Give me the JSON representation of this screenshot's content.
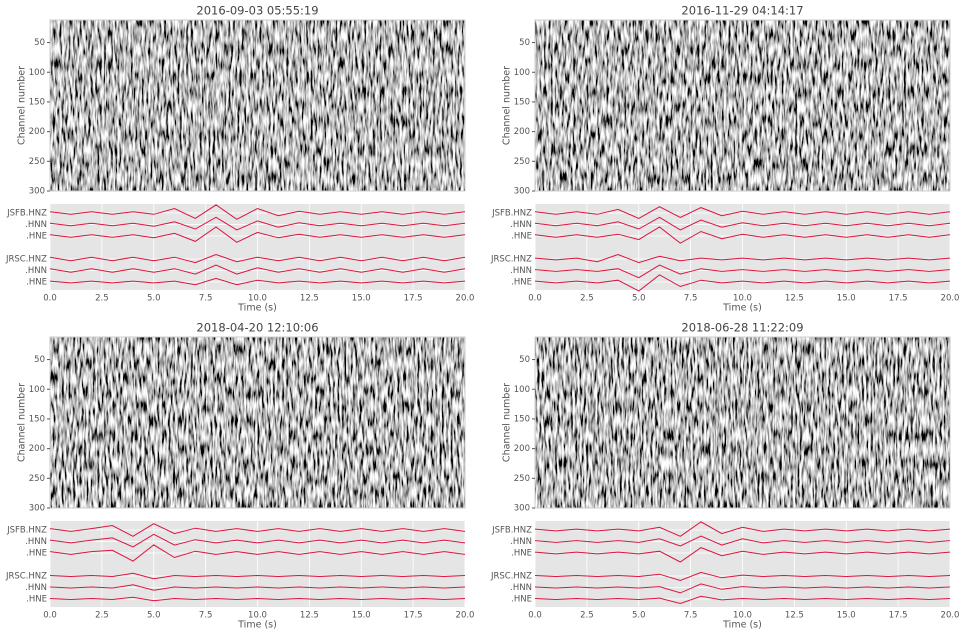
{
  "chart_data": [
    {
      "type": "seismic",
      "title": "2016-09-03 05:55:19",
      "image": {
        "ylabel": "Channel number",
        "ylim": [
          12,
          300
        ],
        "yticks": [
          50,
          100,
          150,
          200,
          250,
          300
        ]
      },
      "traces": {
        "xlabel": "Time (s)",
        "xlim": [
          0,
          20
        ],
        "xticks": [
          {
            "value": 0,
            "label": "0.0"
          },
          2.5,
          {
            "value": 5,
            "label": "5.0"
          },
          7.5,
          {
            "value": 10,
            "label": "10.0"
          },
          12.5,
          {
            "value": 15,
            "label": "15.0"
          },
          17.5,
          {
            "value": 20,
            "label": "20.0"
          }
        ],
        "x": [
          0,
          1,
          2,
          3,
          4,
          5,
          6,
          7,
          8,
          9,
          10,
          11,
          12,
          13,
          14,
          15,
          16,
          17,
          18,
          19,
          20
        ],
        "series": [
          {
            "name": "JSFB.HNZ",
            "color": "#dc143c",
            "values": [
              0.15,
              -0.15,
              0.15,
              -0.15,
              0.15,
              -0.15,
              0.5,
              -0.6,
              0.9,
              -0.7,
              0.5,
              -0.3,
              0.2,
              -0.15,
              0.15,
              -0.15,
              0.15,
              -0.15,
              0.15,
              -0.15,
              0.15
            ]
          },
          {
            "name": ".HNN",
            "color": "#dc143c",
            "values": [
              0.15,
              -0.15,
              0.15,
              -0.15,
              0.15,
              -0.2,
              0.3,
              -0.5,
              0.8,
              -0.6,
              0.4,
              -0.3,
              0.2,
              -0.15,
              0.15,
              -0.15,
              0.15,
              -0.15,
              0.15,
              -0.15,
              0.15
            ]
          },
          {
            "name": ".HNE",
            "color": "#dc143c",
            "values": [
              0.15,
              -0.15,
              0.15,
              -0.15,
              0.15,
              -0.2,
              0.3,
              -0.6,
              1.0,
              -0.7,
              0.4,
              -0.2,
              0.2,
              -0.15,
              0.15,
              -0.15,
              0.15,
              -0.15,
              0.15,
              -0.15,
              0.15
            ]
          },
          {
            "name": "JRSC.HNZ",
            "color": "#dc143c",
            "values": [
              0.2,
              -0.2,
              0.2,
              -0.2,
              0.2,
              -0.2,
              0.2,
              -0.4,
              0.5,
              -0.3,
              0.2,
              -0.2,
              0.2,
              -0.2,
              0.2,
              -0.2,
              0.2,
              -0.2,
              0.2,
              -0.2,
              0.2
            ]
          },
          {
            "name": ".HNN",
            "color": "#dc143c",
            "values": [
              0.2,
              -0.2,
              0.2,
              -0.2,
              0.2,
              -0.2,
              0.2,
              -0.4,
              0.6,
              -0.4,
              0.3,
              -0.2,
              0.2,
              -0.2,
              0.2,
              -0.2,
              0.2,
              -0.2,
              0.2,
              -0.2,
              0.2
            ]
          },
          {
            "name": ".HNE",
            "color": "#dc143c",
            "values": [
              0.1,
              -0.1,
              0.1,
              -0.1,
              0.1,
              -0.1,
              0.1,
              -0.3,
              0.4,
              -0.3,
              0.2,
              -0.1,
              0.1,
              -0.1,
              0.1,
              -0.1,
              0.1,
              -0.1,
              0.1,
              -0.1,
              0.1
            ]
          }
        ]
      }
    },
    {
      "type": "seismic",
      "title": "2016-11-29 04:14:17",
      "image": {
        "ylabel": "Channel number",
        "ylim": [
          12,
          300
        ],
        "yticks": [
          50,
          100,
          150,
          200,
          250,
          300
        ]
      },
      "traces": {
        "xlabel": "Time (s)",
        "xlim": [
          0,
          20
        ],
        "xticks": [
          {
            "value": 0,
            "label": "0.0"
          },
          2.5,
          {
            "value": 5,
            "label": "5.0"
          },
          7.5,
          {
            "value": 10,
            "label": "10.0"
          },
          12.5,
          {
            "value": 15,
            "label": "15.0"
          },
          17.5,
          {
            "value": 20,
            "label": "20.0"
          }
        ],
        "x": [
          0,
          1,
          2,
          3,
          4,
          5,
          6,
          7,
          8,
          9,
          10,
          11,
          12,
          13,
          14,
          15,
          16,
          17,
          18,
          19,
          20
        ],
        "series": [
          {
            "name": "JSFB.HNZ",
            "color": "#dc143c",
            "values": [
              0.15,
              -0.15,
              0.15,
              -0.15,
              0.4,
              -0.6,
              0.7,
              -0.5,
              0.6,
              -0.3,
              0.2,
              -0.15,
              0.15,
              -0.15,
              0.15,
              -0.15,
              0.15,
              -0.15,
              0.15,
              -0.15,
              0.15
            ]
          },
          {
            "name": ".HNN",
            "color": "#dc143c",
            "values": [
              0.15,
              -0.15,
              0.15,
              -0.15,
              0.3,
              -0.5,
              0.8,
              -0.6,
              0.5,
              -0.3,
              0.2,
              -0.15,
              0.15,
              -0.15,
              0.15,
              -0.15,
              0.15,
              -0.15,
              0.15,
              -0.15,
              0.15
            ]
          },
          {
            "name": ".HNE",
            "color": "#dc143c",
            "values": [
              0.15,
              -0.15,
              0.15,
              -0.15,
              0.2,
              -0.4,
              1.0,
              -0.8,
              0.5,
              -0.3,
              0.2,
              -0.15,
              0.15,
              -0.15,
              0.15,
              -0.15,
              0.15,
              -0.15,
              0.15,
              -0.15,
              0.15
            ]
          },
          {
            "name": "JRSC.HNZ",
            "color": "#dc143c",
            "values": [
              0.1,
              -0.1,
              0.1,
              -0.3,
              0.5,
              -0.4,
              0.3,
              -0.2,
              0.1,
              -0.1,
              0.1,
              -0.1,
              0.1,
              -0.1,
              0.1,
              -0.1,
              0.1,
              -0.1,
              0.1,
              -0.1,
              0.1
            ]
          },
          {
            "name": ".HNN",
            "color": "#dc143c",
            "values": [
              0.1,
              -0.1,
              0.1,
              -0.1,
              0.2,
              -0.8,
              0.6,
              -0.4,
              0.2,
              -0.1,
              0.1,
              -0.1,
              0.1,
              -0.1,
              0.1,
              -0.1,
              0.1,
              -0.1,
              0.1,
              -0.1,
              0.1
            ]
          },
          {
            "name": ".HNE",
            "color": "#dc143c",
            "values": [
              0.1,
              -0.1,
              0.1,
              -0.1,
              0.2,
              -1.0,
              0.8,
              -0.5,
              0.2,
              -0.1,
              0.1,
              -0.1,
              0.1,
              -0.1,
              0.1,
              -0.1,
              0.1,
              -0.1,
              0.1,
              -0.1,
              0.1
            ]
          }
        ]
      }
    },
    {
      "type": "seismic",
      "title": "2018-04-20 12:10:06",
      "image": {
        "ylabel": "Channel number",
        "ylim": [
          12,
          300
        ],
        "yticks": [
          50,
          100,
          150,
          200,
          250,
          300
        ]
      },
      "traces": {
        "xlabel": "Time (s)",
        "xlim": [
          0,
          20
        ],
        "xticks": [
          {
            "value": 0,
            "label": "0.0"
          },
          2.5,
          {
            "value": 5,
            "label": "5.0"
          },
          7.5,
          {
            "value": 10,
            "label": "10.0"
          },
          12.5,
          {
            "value": 15,
            "label": "15.0"
          },
          17.5,
          {
            "value": 20,
            "label": "20.0"
          }
        ],
        "x": [
          0,
          1,
          2,
          3,
          4,
          5,
          6,
          7,
          8,
          9,
          10,
          11,
          12,
          13,
          14,
          15,
          16,
          17,
          18,
          19,
          20
        ],
        "series": [
          {
            "name": "JSFB.HNZ",
            "color": "#dc143c",
            "values": [
              0.15,
              -0.15,
              0.15,
              0.5,
              -0.7,
              0.7,
              -0.4,
              0.2,
              -0.15,
              0.15,
              -0.15,
              0.15,
              -0.15,
              0.15,
              -0.15,
              0.15,
              -0.15,
              0.15,
              -0.15,
              0.15,
              -0.15
            ]
          },
          {
            "name": ".HNN",
            "color": "#dc143c",
            "values": [
              0.15,
              -0.15,
              0.15,
              0.4,
              -0.6,
              0.8,
              -0.4,
              0.2,
              -0.15,
              0.15,
              -0.15,
              0.15,
              -0.15,
              0.15,
              -0.15,
              0.15,
              -0.15,
              0.15,
              -0.15,
              0.15,
              -0.15
            ]
          },
          {
            "name": ".HNE",
            "color": "#dc143c",
            "values": [
              0.15,
              -0.15,
              0.15,
              0.3,
              -0.9,
              0.9,
              -0.5,
              0.2,
              -0.15,
              0.15,
              -0.15,
              0.15,
              -0.15,
              0.15,
              -0.15,
              0.15,
              -0.15,
              0.15,
              -0.15,
              0.15,
              -0.15
            ]
          },
          {
            "name": "JRSC.HNZ",
            "color": "#dc143c",
            "values": [
              0.05,
              -0.05,
              0.05,
              -0.05,
              0.3,
              -0.3,
              0.05,
              -0.05,
              0.05,
              -0.05,
              0.05,
              -0.05,
              0.05,
              -0.05,
              0.05,
              -0.05,
              0.05,
              -0.05,
              0.05,
              -0.05,
              0.05
            ]
          },
          {
            "name": ".HNN",
            "color": "#dc143c",
            "values": [
              0.05,
              -0.05,
              0.05,
              -0.05,
              0.3,
              -0.3,
              0.05,
              -0.05,
              0.05,
              -0.05,
              0.05,
              -0.05,
              0.05,
              -0.05,
              0.05,
              -0.05,
              0.05,
              -0.05,
              0.05,
              -0.05,
              0.05
            ]
          },
          {
            "name": ".HNE",
            "color": "#dc143c",
            "values": [
              0.05,
              -0.05,
              0.05,
              -0.05,
              0.2,
              -0.2,
              0.05,
              -0.05,
              0.05,
              -0.05,
              0.05,
              -0.05,
              0.05,
              -0.05,
              0.05,
              -0.05,
              0.05,
              -0.05,
              0.05,
              -0.05,
              0.05
            ]
          }
        ]
      }
    },
    {
      "type": "seismic",
      "title": "2018-06-28 11:22:09",
      "image": {
        "ylabel": "Channel number",
        "ylim": [
          12,
          300
        ],
        "yticks": [
          50,
          100,
          150,
          200,
          250,
          300
        ]
      },
      "traces": {
        "xlabel": "Time (s)",
        "xlim": [
          0,
          20
        ],
        "xticks": [
          {
            "value": 0,
            "label": "0.0"
          },
          2.5,
          {
            "value": 5,
            "label": "5.0"
          },
          7.5,
          {
            "value": 10,
            "label": "10.0"
          },
          12.5,
          {
            "value": 15,
            "label": "15.0"
          },
          17.5,
          {
            "value": 20,
            "label": "20.0"
          }
        ],
        "x": [
          0,
          1,
          2,
          3,
          4,
          5,
          6,
          7,
          8,
          9,
          10,
          11,
          12,
          13,
          14,
          15,
          16,
          17,
          18,
          19,
          20
        ],
        "series": [
          {
            "name": "JSFB.HNZ",
            "color": "#dc143c",
            "values": [
              0.1,
              -0.1,
              0.1,
              -0.1,
              0.1,
              -0.1,
              0.3,
              -0.7,
              0.9,
              -0.4,
              0.3,
              -0.15,
              0.1,
              -0.1,
              0.1,
              -0.1,
              0.1,
              -0.1,
              0.1,
              -0.1,
              0.1
            ]
          },
          {
            "name": ".HNN",
            "color": "#dc143c",
            "values": [
              0.1,
              -0.1,
              0.1,
              -0.1,
              0.1,
              -0.1,
              0.3,
              -0.5,
              0.6,
              -0.4,
              0.3,
              -0.15,
              0.1,
              -0.1,
              0.1,
              -0.1,
              0.1,
              -0.1,
              0.1,
              -0.1,
              0.1
            ]
          },
          {
            "name": ".HNE",
            "color": "#dc143c",
            "values": [
              0.1,
              -0.1,
              0.1,
              -0.1,
              0.1,
              -0.1,
              0.2,
              -1.0,
              0.6,
              -0.3,
              0.2,
              -0.15,
              0.1,
              -0.1,
              0.1,
              -0.1,
              0.1,
              -0.1,
              0.1,
              -0.1,
              0.1
            ]
          },
          {
            "name": "JRSC.HNZ",
            "color": "#dc143c",
            "values": [
              0.05,
              -0.05,
              0.05,
              -0.05,
              0.05,
              -0.05,
              0.2,
              -0.5,
              0.4,
              -0.2,
              0.1,
              -0.05,
              0.05,
              -0.05,
              0.05,
              -0.05,
              0.05,
              -0.05,
              0.05,
              -0.05,
              0.05
            ]
          },
          {
            "name": ".HNN",
            "color": "#dc143c",
            "values": [
              0.05,
              -0.05,
              0.05,
              -0.05,
              0.05,
              -0.05,
              0.1,
              -0.6,
              0.4,
              -0.2,
              0.1,
              -0.05,
              0.05,
              -0.05,
              0.05,
              -0.05,
              0.05,
              -0.05,
              0.05,
              -0.05,
              0.05
            ]
          },
          {
            "name": ".HNE",
            "color": "#dc143c",
            "values": [
              0.05,
              -0.05,
              0.05,
              -0.05,
              0.05,
              -0.05,
              0.1,
              -0.5,
              0.3,
              -0.1,
              0.05,
              -0.05,
              0.05,
              -0.05,
              0.05,
              -0.05,
              0.05,
              -0.05,
              0.05,
              -0.05,
              0.05
            ]
          }
        ]
      }
    }
  ]
}
